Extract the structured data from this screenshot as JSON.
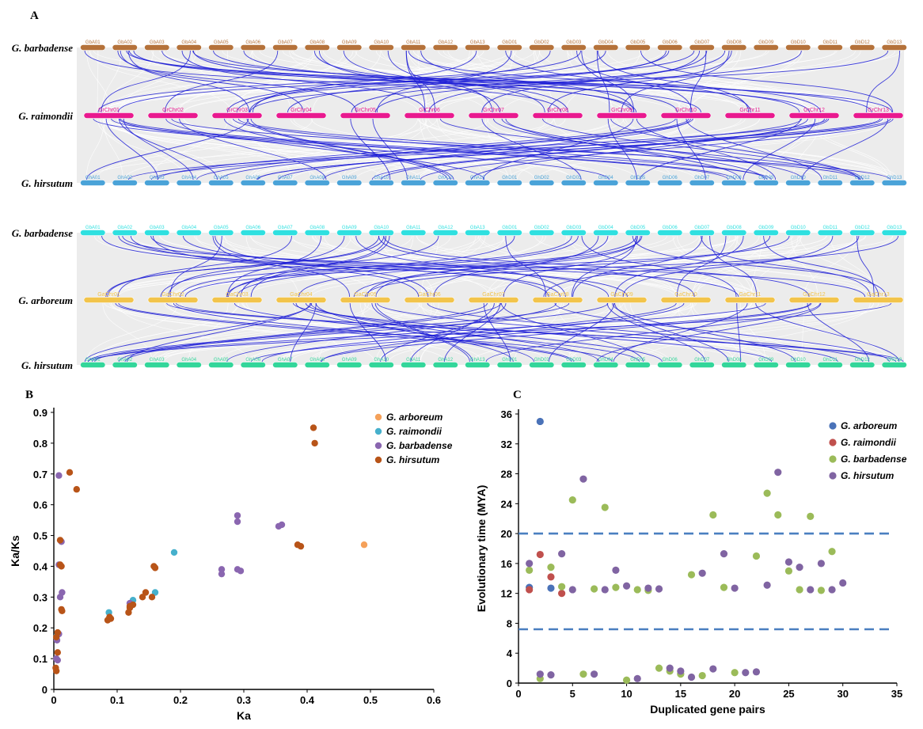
{
  "panels": {
    "a": "A",
    "b": "B",
    "c": "C"
  },
  "colors": {
    "gb1": "#b5723a",
    "gr": "#e9198f",
    "gh1": "#4aa3d8",
    "gb2": "#2fe0e0",
    "ga": "#f2c44b",
    "gh2": "#33d69a",
    "link": "#1f1fd6",
    "bg_link": "#cfcfcf"
  },
  "synteny": [
    {
      "tracks": [
        {
          "species": "G. barbadense",
          "color_key": "gb1",
          "chromosomes": [
            "GbA01",
            "GbA02",
            "GbA03",
            "GbA04",
            "GbA05",
            "GbA06",
            "GbA07",
            "GbA08",
            "GbA09",
            "GbA10",
            "GbA11",
            "GbA12",
            "GbA13",
            "GbD01",
            "GbD02",
            "GbD03",
            "GbD04",
            "GbD05",
            "GbD06",
            "GbD07",
            "GbD08",
            "GbD09",
            "GbD10",
            "GbD11",
            "GbD12",
            "GbD13"
          ]
        },
        {
          "species": "G. raimondii",
          "color_key": "gr",
          "chromosomes": [
            "GrChr01",
            "GrChr02",
            "GrChr03",
            "GrChr04",
            "GrChr05",
            "GrChr06",
            "GrChr07",
            "GrChr08",
            "GrChr09",
            "GrChr10",
            "GrChr11",
            "GrChr12",
            "GrChr13"
          ]
        },
        {
          "species": "G. hirsutum",
          "color_key": "gh1",
          "chromosomes": [
            "GhA01",
            "GhA02",
            "GhA03",
            "GhA04",
            "GhA05",
            "GhA06",
            "GhA07",
            "GhA08",
            "GhA09",
            "GhA10",
            "GhA11",
            "GhA12",
            "GhA13",
            "GhD01",
            "GhD02",
            "GhD03",
            "GhD04",
            "GhD05",
            "GhD06",
            "GhD07",
            "GhD08",
            "GhD09",
            "GhD10",
            "GhD11",
            "GhD12",
            "GhD13"
          ]
        }
      ]
    },
    {
      "tracks": [
        {
          "species": "G. barbadense",
          "color_key": "gb2",
          "chromosomes": [
            "GbA01",
            "GbA02",
            "GbA03",
            "GbA04",
            "GbA05",
            "GbA06",
            "GbA07",
            "GbA08",
            "GbA09",
            "GbA10",
            "GbA11",
            "GbA12",
            "GbA13",
            "GbD01",
            "GbD02",
            "GbD03",
            "GbD04",
            "GbD05",
            "GbD06",
            "GbD07",
            "GbD08",
            "GbD09",
            "GbD10",
            "GbD11",
            "GbD12",
            "GbD13"
          ]
        },
        {
          "species": "G. arboreum",
          "color_key": "ga",
          "chromosomes": [
            "GaChr01",
            "GaChr02",
            "GaChr03",
            "GaChr04",
            "GaChr05",
            "GaChr06",
            "GaChr07",
            "GaChr08",
            "GaChr09",
            "GaChr10",
            "GaChr11",
            "GaChr12",
            "GaChr13"
          ]
        },
        {
          "species": "G. hirsutum",
          "color_key": "gh2",
          "chromosomes": [
            "GhA01",
            "GhA02",
            "GhA03",
            "GhA04",
            "GhA05",
            "GhA06",
            "GhA07",
            "GhA08",
            "GhA09",
            "GhA10",
            "GhA11",
            "GhA12",
            "GhA13",
            "GhD01",
            "GhD02",
            "GhD03",
            "GhD04",
            "GhD05",
            "GhD06",
            "GhD07",
            "GhD08",
            "GhD09",
            "GhD10",
            "GhD11",
            "GhD12",
            "GhD13"
          ]
        }
      ]
    }
  ],
  "chart_data": [
    {
      "type": "scatter",
      "panel": "B",
      "title": "",
      "xlabel": "Ka",
      "ylabel": "Ka/Ks",
      "xlim": [
        0,
        0.6
      ],
      "ylim": [
        0,
        0.9
      ],
      "xticks": [
        "0",
        "0.1",
        "0.2",
        "0.3",
        "0.4",
        "0.5",
        "0.6"
      ],
      "yticks": [
        "0",
        "0.1",
        "0.2",
        "0.3",
        "0.4",
        "0.5",
        "0.6",
        "0.7",
        "0.8",
        "0.9"
      ],
      "legend_position": "top-right",
      "series": [
        {
          "name": "G. arboreum",
          "color": "#f5a15a",
          "points": [
            [
              0.49,
              0.47
            ]
          ]
        },
        {
          "name": "G. raimondii",
          "color": "#46b0cc",
          "points": [
            [
              0.087,
              0.25
            ],
            [
              0.19,
              0.445
            ],
            [
              0.16,
              0.315
            ],
            [
              0.125,
              0.29
            ],
            [
              0.005,
              0.175
            ]
          ]
        },
        {
          "name": "G. barbadense",
          "color": "#8a66b0",
          "points": [
            [
              0.008,
              0.695
            ],
            [
              0.012,
              0.48
            ],
            [
              0.008,
              0.405
            ],
            [
              0.013,
              0.315
            ],
            [
              0.01,
              0.3
            ],
            [
              0.008,
              0.18
            ],
            [
              0.005,
              0.16
            ],
            [
              0.004,
              0.1
            ],
            [
              0.006,
              0.095
            ],
            [
              0.265,
              0.39
            ],
            [
              0.265,
              0.375
            ],
            [
              0.29,
              0.565
            ],
            [
              0.29,
              0.545
            ],
            [
              0.29,
              0.39
            ],
            [
              0.295,
              0.385
            ],
            [
              0.355,
              0.53
            ],
            [
              0.36,
              0.535
            ],
            [
              0.12,
              0.28
            ]
          ]
        },
        {
          "name": "G. hirsutum",
          "color": "#b85418",
          "points": [
            [
              0.025,
              0.705
            ],
            [
              0.036,
              0.65
            ],
            [
              0.01,
              0.485
            ],
            [
              0.012,
              0.4
            ],
            [
              0.01,
              0.405
            ],
            [
              0.012,
              0.26
            ],
            [
              0.013,
              0.255
            ],
            [
              0.006,
              0.185
            ],
            [
              0.004,
              0.17
            ],
            [
              0.006,
              0.12
            ],
            [
              0.003,
              0.07
            ],
            [
              0.004,
              0.06
            ],
            [
              0.085,
              0.225
            ],
            [
              0.088,
              0.235
            ],
            [
              0.09,
              0.23
            ],
            [
              0.118,
              0.25
            ],
            [
              0.12,
              0.265
            ],
            [
              0.12,
              0.27
            ],
            [
              0.125,
              0.275
            ],
            [
              0.14,
              0.3
            ],
            [
              0.145,
              0.315
            ],
            [
              0.155,
              0.3
            ],
            [
              0.158,
              0.4
            ],
            [
              0.16,
              0.395
            ],
            [
              0.385,
              0.47
            ],
            [
              0.39,
              0.465
            ],
            [
              0.41,
              0.85
            ],
            [
              0.412,
              0.8
            ]
          ]
        }
      ]
    },
    {
      "type": "scatter",
      "panel": "C",
      "title": "",
      "xlabel": "Duplicated gene pairs",
      "ylabel": "Evolutionary time (MYA)",
      "xlim": [
        0,
        35
      ],
      "ylim": [
        0,
        36
      ],
      "xticks": [
        "0",
        "5",
        "10",
        "15",
        "20",
        "25",
        "30",
        "35"
      ],
      "yticks": [
        "0",
        "4",
        "8",
        "12",
        "16",
        "20",
        "24",
        "28",
        "32",
        "36"
      ],
      "reference_lines_y": [
        20,
        7.2
      ],
      "legend_position": "top-right",
      "series": [
        {
          "name": "G. arboreum",
          "color": "#4a72b8",
          "points": [
            [
              1,
              12.8
            ],
            [
              2,
              35
            ],
            [
              3,
              12.7
            ]
          ]
        },
        {
          "name": "G. raimondii",
          "color": "#c0504d",
          "points": [
            [
              1,
              12.5
            ],
            [
              2,
              17.2
            ],
            [
              3,
              14.2
            ],
            [
              4,
              12
            ]
          ]
        },
        {
          "name": "G. barbadense",
          "color": "#9bbb59",
          "points": [
            [
              1,
              15.1
            ],
            [
              2,
              0.6
            ],
            [
              3,
              15.5
            ],
            [
              4,
              12.9
            ],
            [
              5,
              24.5
            ],
            [
              6,
              1.2
            ],
            [
              7,
              12.6
            ],
            [
              8,
              23.5
            ],
            [
              9,
              12.8
            ],
            [
              10,
              0.4
            ],
            [
              11,
              12.5
            ],
            [
              12,
              12.4
            ],
            [
              13,
              2
            ],
            [
              14,
              1.6
            ],
            [
              15,
              1.2
            ],
            [
              16,
              14.5
            ],
            [
              17,
              1
            ],
            [
              18,
              22.5
            ],
            [
              19,
              12.8
            ],
            [
              20,
              1.4
            ],
            [
              22,
              17
            ],
            [
              23,
              25.4
            ],
            [
              24,
              22.5
            ],
            [
              25,
              15
            ],
            [
              26,
              12.5
            ],
            [
              27,
              22.3
            ],
            [
              28,
              12.4
            ],
            [
              29,
              17.6
            ]
          ]
        },
        {
          "name": "G. hirsutum",
          "color": "#8064a2",
          "points": [
            [
              1,
              16
            ],
            [
              2,
              1.2
            ],
            [
              3,
              1.1
            ],
            [
              4,
              17.3
            ],
            [
              5,
              12.5
            ],
            [
              6,
              27.3
            ],
            [
              7,
              1.2
            ],
            [
              8,
              12.5
            ],
            [
              9,
              15.1
            ],
            [
              10,
              13
            ],
            [
              11,
              0.6
            ],
            [
              12,
              12.7
            ],
            [
              13,
              12.6
            ],
            [
              14,
              2
            ],
            [
              15,
              1.6
            ],
            [
              16,
              0.8
            ],
            [
              17,
              14.7
            ],
            [
              18,
              1.9
            ],
            [
              19,
              17.3
            ],
            [
              20,
              12.7
            ],
            [
              21,
              1.4
            ],
            [
              22,
              1.5
            ],
            [
              23,
              13.1
            ],
            [
              24,
              28.2
            ],
            [
              25,
              16.2
            ],
            [
              26,
              15.5
            ],
            [
              27,
              12.5
            ],
            [
              28,
              16
            ],
            [
              29,
              12.5
            ],
            [
              30,
              13.4
            ]
          ]
        }
      ]
    }
  ]
}
